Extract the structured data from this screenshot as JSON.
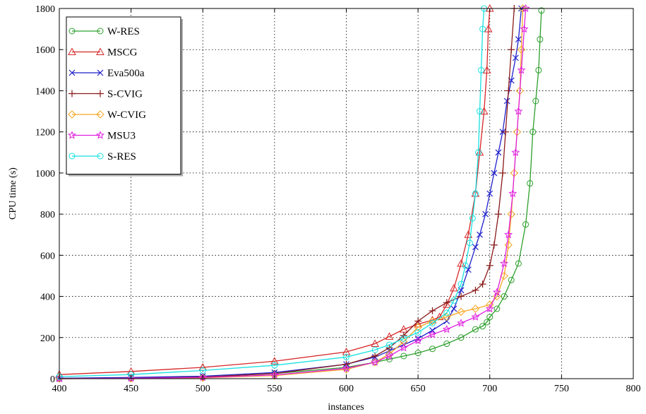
{
  "chart_data": {
    "type": "line",
    "title": "",
    "xlabel": "instances",
    "ylabel": "CPU time (s)",
    "xlim": [
      400,
      800
    ],
    "ylim": [
      0,
      1800
    ],
    "xticks": [
      400,
      450,
      500,
      550,
      600,
      650,
      700,
      750,
      800
    ],
    "yticks": [
      0,
      200,
      400,
      600,
      800,
      1000,
      1200,
      1400,
      1600,
      1800
    ],
    "grid": true,
    "legend_position": "top-left",
    "series": [
      {
        "name": "W-RES",
        "color": "#2ca02c",
        "marker": "circle",
        "points": [
          [
            400,
            1
          ],
          [
            450,
            3
          ],
          [
            500,
            8
          ],
          [
            550,
            25
          ],
          [
            600,
            55
          ],
          [
            620,
            80
          ],
          [
            630,
            95
          ],
          [
            640,
            110
          ],
          [
            650,
            125
          ],
          [
            660,
            145
          ],
          [
            670,
            170
          ],
          [
            680,
            200
          ],
          [
            690,
            240
          ],
          [
            695,
            255
          ],
          [
            698,
            275
          ],
          [
            700,
            300
          ],
          [
            705,
            340
          ],
          [
            710,
            400
          ],
          [
            715,
            480
          ],
          [
            720,
            560
          ],
          [
            725,
            750
          ],
          [
            728,
            950
          ],
          [
            730,
            1200
          ],
          [
            732,
            1350
          ],
          [
            734,
            1500
          ],
          [
            735,
            1650
          ],
          [
            736,
            1790
          ]
        ]
      },
      {
        "name": "MSCG",
        "color": "#d62728",
        "marker": "triangle",
        "points": [
          [
            400,
            20
          ],
          [
            450,
            35
          ],
          [
            500,
            55
          ],
          [
            550,
            85
          ],
          [
            600,
            130
          ],
          [
            620,
            170
          ],
          [
            630,
            205
          ],
          [
            640,
            240
          ],
          [
            650,
            265
          ],
          [
            660,
            285
          ],
          [
            665,
            300
          ],
          [
            670,
            360
          ],
          [
            675,
            440
          ],
          [
            680,
            560
          ],
          [
            685,
            700
          ],
          [
            690,
            900
          ],
          [
            693,
            1100
          ],
          [
            696,
            1300
          ],
          [
            698,
            1500
          ],
          [
            699,
            1700
          ],
          [
            700,
            1800
          ]
        ]
      },
      {
        "name": "Eva500a",
        "color": "#1f1fcc",
        "marker": "x",
        "points": [
          [
            400,
            2
          ],
          [
            450,
            6
          ],
          [
            500,
            12
          ],
          [
            550,
            30
          ],
          [
            600,
            70
          ],
          [
            620,
            105
          ],
          [
            630,
            135
          ],
          [
            640,
            165
          ],
          [
            650,
            195
          ],
          [
            660,
            235
          ],
          [
            670,
            280
          ],
          [
            675,
            340
          ],
          [
            680,
            430
          ],
          [
            685,
            530
          ],
          [
            690,
            640
          ],
          [
            693,
            700
          ],
          [
            697,
            800
          ],
          [
            700,
            900
          ],
          [
            703,
            1000
          ],
          [
            706,
            1100
          ],
          [
            709,
            1200
          ],
          [
            712,
            1350
          ],
          [
            715,
            1450
          ],
          [
            718,
            1560
          ],
          [
            720,
            1650
          ],
          [
            722,
            1800
          ]
        ]
      },
      {
        "name": "S-CVIG",
        "color": "#8b1a1a",
        "marker": "plus",
        "points": [
          [
            400,
            0
          ],
          [
            450,
            2
          ],
          [
            500,
            8
          ],
          [
            550,
            25
          ],
          [
            600,
            70
          ],
          [
            620,
            110
          ],
          [
            630,
            150
          ],
          [
            640,
            210
          ],
          [
            650,
            280
          ],
          [
            660,
            330
          ],
          [
            670,
            370
          ],
          [
            680,
            400
          ],
          [
            690,
            430
          ],
          [
            695,
            460
          ],
          [
            700,
            550
          ],
          [
            703,
            650
          ],
          [
            706,
            800
          ],
          [
            709,
            1000
          ],
          [
            711,
            1200
          ],
          [
            713,
            1400
          ],
          [
            715,
            1600
          ],
          [
            717,
            1800
          ]
        ]
      },
      {
        "name": "W-CVIG",
        "color": "#f5a623",
        "marker": "diamond",
        "points": [
          [
            400,
            0
          ],
          [
            450,
            1
          ],
          [
            500,
            4
          ],
          [
            550,
            15
          ],
          [
            600,
            45
          ],
          [
            620,
            80
          ],
          [
            630,
            120
          ],
          [
            640,
            180
          ],
          [
            650,
            250
          ],
          [
            660,
            280
          ],
          [
            670,
            300
          ],
          [
            680,
            325
          ],
          [
            690,
            340
          ],
          [
            700,
            360
          ],
          [
            705,
            400
          ],
          [
            710,
            500
          ],
          [
            713,
            650
          ],
          [
            715,
            800
          ],
          [
            717,
            1000
          ],
          [
            719,
            1200
          ],
          [
            721,
            1400
          ],
          [
            722,
            1600
          ],
          [
            723,
            1800
          ]
        ]
      },
      {
        "name": "MSU3",
        "color": "#e020e0",
        "marker": "star",
        "points": [
          [
            400,
            0
          ],
          [
            450,
            2
          ],
          [
            500,
            6
          ],
          [
            550,
            18
          ],
          [
            600,
            50
          ],
          [
            620,
            80
          ],
          [
            630,
            110
          ],
          [
            640,
            150
          ],
          [
            650,
            185
          ],
          [
            660,
            215
          ],
          [
            670,
            240
          ],
          [
            680,
            270
          ],
          [
            690,
            300
          ],
          [
            700,
            340
          ],
          [
            705,
            420
          ],
          [
            710,
            560
          ],
          [
            713,
            700
          ],
          [
            716,
            900
          ],
          [
            718,
            1100
          ],
          [
            720,
            1300
          ],
          [
            722,
            1500
          ],
          [
            724,
            1700
          ],
          [
            725,
            1800
          ]
        ]
      },
      {
        "name": "S-RES",
        "color": "#17e0e0",
        "marker": "circle",
        "points": [
          [
            400,
            10
          ],
          [
            450,
            20
          ],
          [
            500,
            40
          ],
          [
            550,
            65
          ],
          [
            600,
            105
          ],
          [
            620,
            140
          ],
          [
            630,
            165
          ],
          [
            640,
            195
          ],
          [
            650,
            225
          ],
          [
            660,
            270
          ],
          [
            670,
            320
          ],
          [
            675,
            380
          ],
          [
            680,
            460
          ],
          [
            683,
            550
          ],
          [
            686,
            660
          ],
          [
            688,
            780
          ],
          [
            690,
            900
          ],
          [
            692,
            1100
          ],
          [
            693,
            1300
          ],
          [
            694,
            1500
          ],
          [
            695,
            1700
          ],
          [
            696,
            1800
          ]
        ]
      }
    ]
  }
}
